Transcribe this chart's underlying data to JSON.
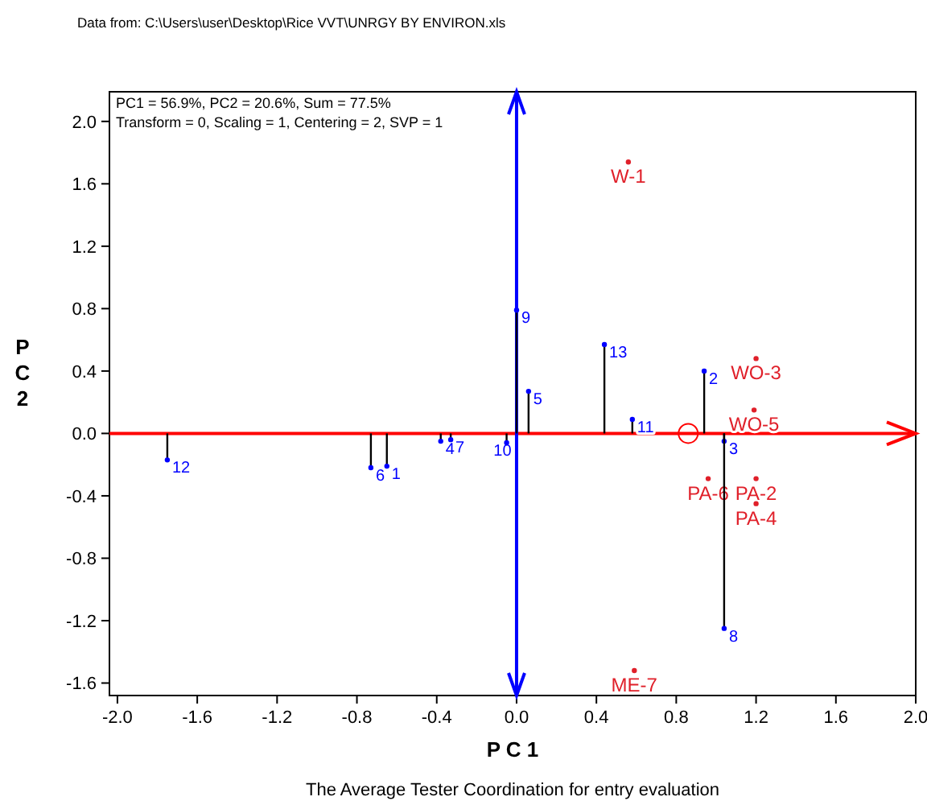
{
  "chart_data": {
    "type": "scatter",
    "title": "The Average Tester Coordination for entry evaluation",
    "xlabel": "P C 1",
    "ylabel": "PC2",
    "xlim": [
      -2.04,
      2.0
    ],
    "ylim": [
      -1.68,
      2.19
    ],
    "xticks": [
      {
        "value": -2,
        "label": "-2.0"
      },
      {
        "value": -1.6,
        "label": "-1.6"
      },
      {
        "value": -1.2,
        "label": "-1.2"
      },
      {
        "value": -0.8,
        "label": "-0.8"
      },
      {
        "value": -0.4,
        "label": "-0.4"
      },
      {
        "value": 0,
        "label": "0.0"
      },
      {
        "value": 0.4,
        "label": "0.4"
      },
      {
        "value": 0.8,
        "label": "0.8"
      },
      {
        "value": 1.2,
        "label": "1.2"
      },
      {
        "value": 1.6,
        "label": "1.6"
      },
      {
        "value": 2,
        "label": "2.0"
      }
    ],
    "yticks": [
      {
        "value": -1.6,
        "label": "-1.6"
      },
      {
        "value": -1.2,
        "label": "-1.2"
      },
      {
        "value": -0.8,
        "label": "-0.8"
      },
      {
        "value": -0.4,
        "label": "-0.4"
      },
      {
        "value": 0,
        "label": "0.0"
      },
      {
        "value": 0.4,
        "label": "0.4"
      },
      {
        "value": 0.8,
        "label": "0.8"
      },
      {
        "value": 1.2,
        "label": "1.2"
      },
      {
        "value": 1.6,
        "label": "1.6"
      },
      {
        "value": 2,
        "label": "2.0"
      }
    ],
    "grid": false,
    "series": [
      {
        "type": "lollipop",
        "color": "#0000ff",
        "marker": "circle",
        "x": [
          -1.75,
          -0.73,
          -0.65,
          -0.38,
          -0.33,
          -0.05,
          0.0,
          0.06,
          0.44,
          0.58,
          0.94,
          1.04,
          1.04
        ],
        "values": [
          -0.17,
          -0.22,
          -0.21,
          -0.05,
          -0.04,
          -0.06,
          0.79,
          0.27,
          0.57,
          0.09,
          0.4,
          -0.05,
          -1.25
        ]
      },
      {
        "color": "#e0202a",
        "marker": "circle",
        "x": [
          0.56,
          1.2,
          1.19,
          0.96,
          1.2,
          1.2,
          0.59
        ],
        "values": [
          1.74,
          0.48,
          0.15,
          -0.29,
          -0.29,
          -0.45,
          -1.52
        ]
      },
      {
        "type": "bubble",
        "color": "#ff0000",
        "x": [
          0.86
        ],
        "values": [
          0.0
        ],
        "sizes": [
          1
        ]
      }
    ],
    "ref_lines": [
      {
        "axis": "y",
        "value": 0,
        "color": "#ff0000"
      },
      {
        "axis": "x",
        "value": 0,
        "color": "#0000ff"
      }
    ],
    "annotations": [
      "Data from: C:\\Users\\user\\Desktop\\Rice VVT\\UNRGY BY ENVIRON.xls",
      "PC1 = 56.9%, PC2 = 20.6%, Sum = 77.5%",
      "Transform = 0, Scaling = 1, Centering = 2, SVP = 1",
      {
        "text": "12",
        "x": -1.75,
        "y": -0.17
      },
      {
        "text": "6",
        "x": -0.73,
        "y": -0.22
      },
      {
        "text": "1",
        "x": -0.65,
        "y": -0.21
      },
      {
        "text": "4",
        "x": -0.38,
        "y": -0.05
      },
      {
        "text": "7",
        "x": -0.33,
        "y": -0.04
      },
      {
        "text": "10",
        "x": -0.05,
        "y": -0.06
      },
      {
        "text": "9",
        "x": 0.0,
        "y": 0.79
      },
      {
        "text": "5",
        "x": 0.06,
        "y": 0.27
      },
      {
        "text": "13",
        "x": 0.44,
        "y": 0.57
      },
      {
        "text": "11",
        "x": 0.58,
        "y": 0.09
      },
      {
        "text": "2",
        "x": 0.94,
        "y": 0.4
      },
      {
        "text": "3",
        "x": 1.04,
        "y": -0.05
      },
      {
        "text": "8",
        "x": 1.04,
        "y": -1.25
      },
      {
        "text": "W-1",
        "x": 0.56,
        "y": 1.74
      },
      {
        "text": "WO-3",
        "x": 1.2,
        "y": 0.48
      },
      {
        "text": "WO-5",
        "x": 1.19,
        "y": 0.15
      },
      {
        "text": "PA-6",
        "x": 0.96,
        "y": -0.29
      },
      {
        "text": "PA-2",
        "x": 1.2,
        "y": -0.29
      },
      {
        "text": "PA-4",
        "x": 1.2,
        "y": -0.45
      },
      {
        "text": "ME-7",
        "x": 0.59,
        "y": -1.52
      }
    ]
  }
}
